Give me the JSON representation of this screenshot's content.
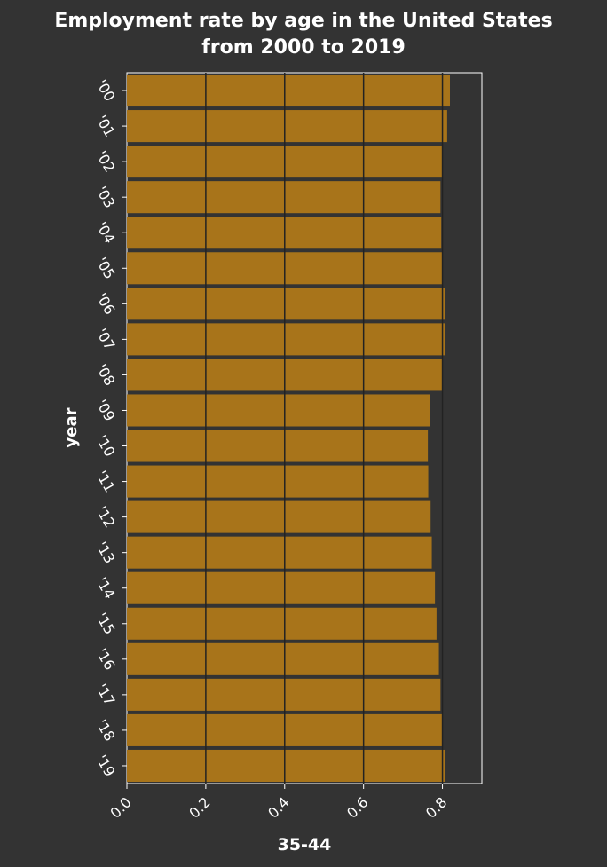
{
  "chart_data": {
    "type": "bar",
    "orientation": "horizontal",
    "title_lines": [
      "Employment rate by age in the United States",
      "from 2000 to 2019"
    ],
    "ylabel": "year",
    "xlabel": "35-44",
    "categories": [
      "'00",
      "'01",
      "'02",
      "'03",
      "'04",
      "'05",
      "'06",
      "'07",
      "'08",
      "'09",
      "'10",
      "'11",
      "'12",
      "'13",
      "'14",
      "'15",
      "'16",
      "'17",
      "'18",
      "'19"
    ],
    "values": [
      0.819,
      0.812,
      0.8,
      0.795,
      0.797,
      0.8,
      0.806,
      0.806,
      0.8,
      0.769,
      0.763,
      0.764,
      0.77,
      0.773,
      0.781,
      0.785,
      0.791,
      0.795,
      0.8,
      0.806
    ],
    "xlim": [
      0,
      0.9
    ],
    "xticks": [
      0.0,
      0.2,
      0.4,
      0.6,
      0.8
    ],
    "xtick_labels": [
      "0.0",
      "0.2",
      "0.4",
      "0.6",
      "0.8"
    ],
    "grid": true,
    "colors": {
      "background": "#333333",
      "bar": "#a8741a",
      "text": "#ffffff",
      "grid": "#222222",
      "axis": "#ffffff"
    }
  }
}
